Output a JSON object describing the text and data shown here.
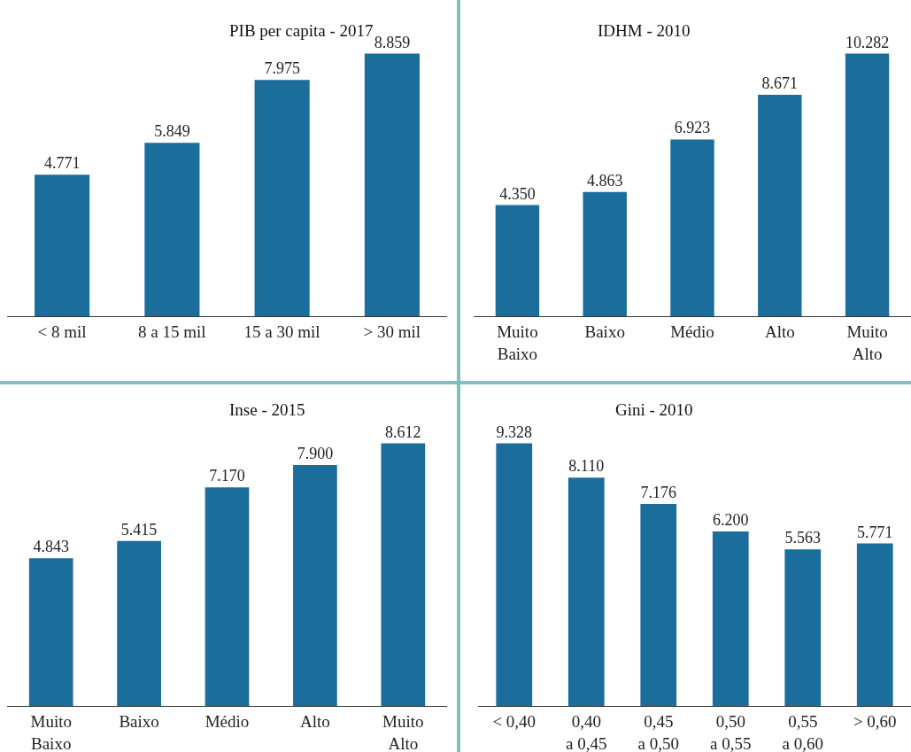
{
  "chart_data": [
    {
      "type": "bar",
      "title": "PIB per capita - 2017",
      "categories": [
        "< 8 mil",
        "8 a 15 mil",
        "15 a 30 mil",
        "> 30 mil"
      ],
      "values": [
        4771,
        5849,
        7975,
        8859
      ],
      "value_labels": [
        "4.771",
        "5.849",
        "7.975",
        "8.859"
      ],
      "color": "#1b6d9b",
      "tick_labels": "x"
    },
    {
      "type": "bar",
      "title": "IDHM - 2010",
      "categories": [
        "Muito\nBaixo",
        "Baixo",
        "Médio",
        "Alto",
        "Muito\nAlto"
      ],
      "values": [
        4350,
        4863,
        6923,
        8671,
        10282
      ],
      "value_labels": [
        "4.350",
        "4.863",
        "6.923",
        "8.671",
        "10.282"
      ],
      "color": "#1b6d9b",
      "tick_labels": "x"
    },
    {
      "type": "bar",
      "title": "Inse - 2015",
      "categories": [
        "Muito\nBaixo",
        "Baixo",
        "Médio",
        "Alto",
        "Muito\nAlto"
      ],
      "values": [
        4843,
        5415,
        7170,
        7900,
        8612
      ],
      "value_labels": [
        "4.843",
        "5.415",
        "7.170",
        "7.900",
        "8.612"
      ],
      "color": "#1b6d9b",
      "tick_labels": "x"
    },
    {
      "type": "bar",
      "title": "Gini - 2010",
      "categories": [
        "< 0,40",
        "0,40\na 0,45",
        "0,45\na 0,50",
        "0,50\na 0,55",
        "0,55\na 0,60",
        "> 0,60"
      ],
      "values": [
        9328,
        8110,
        7176,
        6200,
        5563,
        5771
      ],
      "value_labels": [
        "9.328",
        "8.110",
        "7.176",
        "6.200",
        "5.563",
        "5.771"
      ],
      "color": "#1b6d9b",
      "tick_labels": "x"
    }
  ]
}
